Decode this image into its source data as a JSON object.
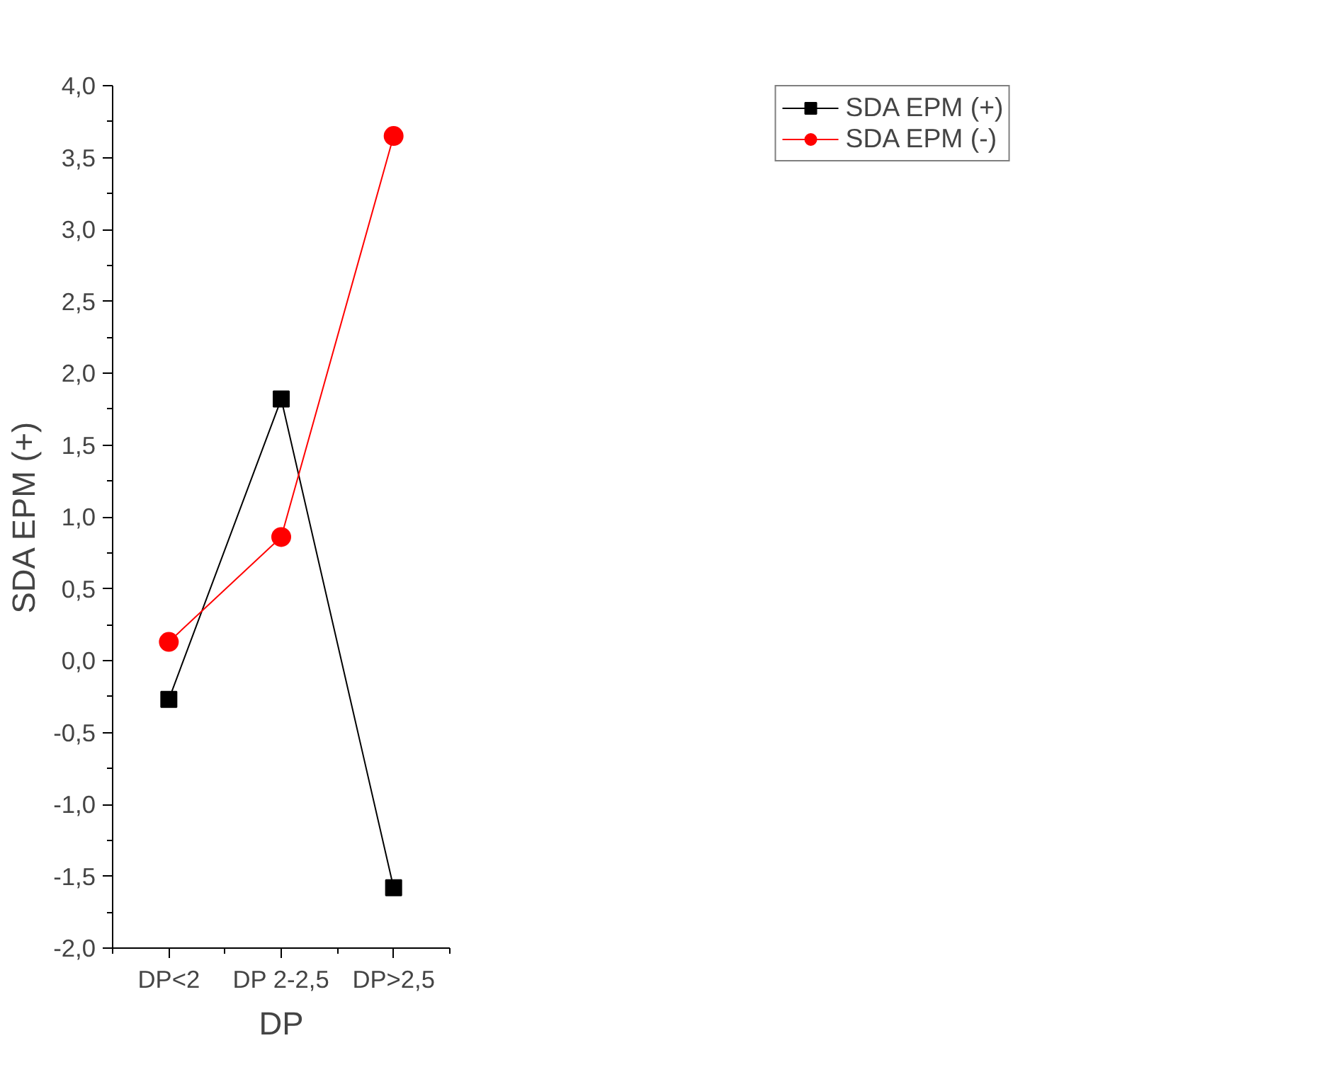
{
  "chart_data": {
    "type": "line",
    "xlabel": "DP",
    "ylabel": "SDA EPM (+)",
    "categories": [
      "DP<2",
      "DP 2-2,5",
      "DP>2,5"
    ],
    "series": [
      {
        "name": "SDA EPM (+)",
        "color": "#000000",
        "marker": "square",
        "values": [
          -0.27,
          1.82,
          -1.58
        ]
      },
      {
        "name": "SDA EPM (-)",
        "color": "#ff0000",
        "marker": "circle",
        "values": [
          0.13,
          0.86,
          3.65
        ]
      }
    ],
    "ylim": [
      -2.0,
      4.0
    ],
    "yticks": [
      {
        "value": -2.0,
        "label": "-2,0"
      },
      {
        "value": -1.5,
        "label": "-1,5"
      },
      {
        "value": -1.0,
        "label": "-1,0"
      },
      {
        "value": -0.5,
        "label": "-0,5"
      },
      {
        "value": 0.0,
        "label": "0,0"
      },
      {
        "value": 0.5,
        "label": "0,5"
      },
      {
        "value": 1.0,
        "label": "1,0"
      },
      {
        "value": 1.5,
        "label": "1,5"
      },
      {
        "value": 2.0,
        "label": "2,0"
      },
      {
        "value": 2.5,
        "label": "2,5"
      },
      {
        "value": 3.0,
        "label": "3,0"
      },
      {
        "value": 3.5,
        "label": "3,5"
      },
      {
        "value": 4.0,
        "label": "4,0"
      }
    ],
    "grid": false,
    "legend": "top right",
    "line_style": "solid"
  }
}
